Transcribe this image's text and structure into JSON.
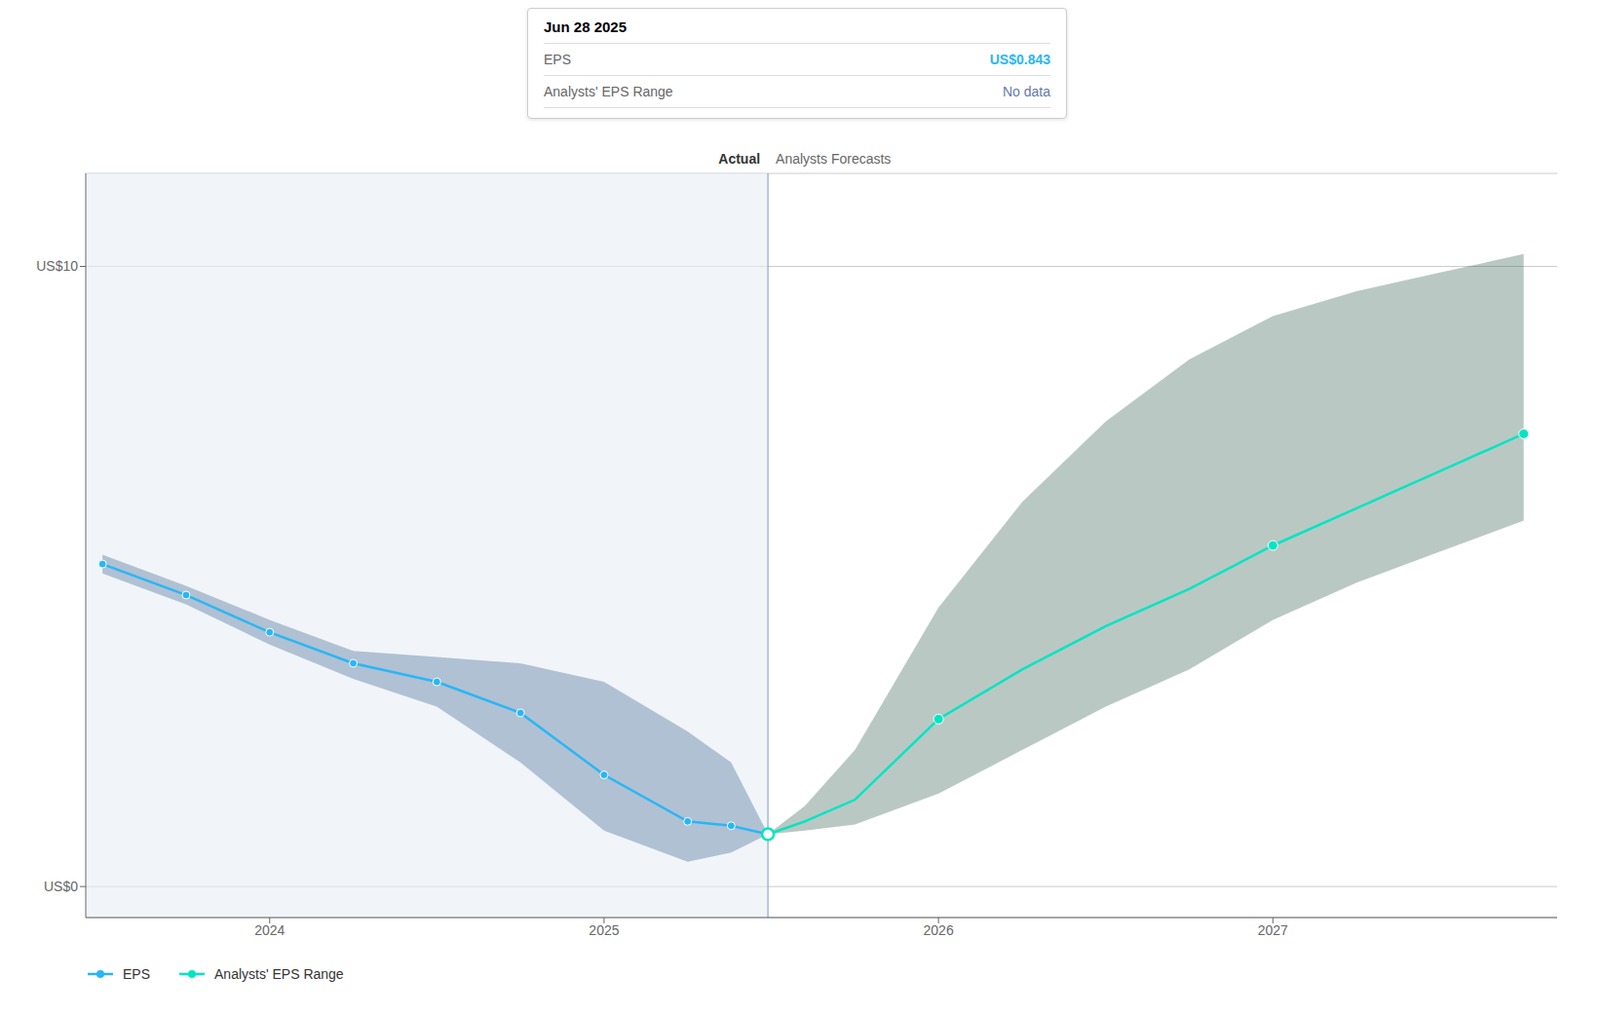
{
  "chart_data": {
    "type": "line",
    "xlim": [
      2023.45,
      2027.85
    ],
    "xticks": [
      2024,
      2025,
      2026,
      2027
    ],
    "ylim": [
      -0.5,
      11.5
    ],
    "yticks": [
      {
        "value": 0,
        "label": "US$0"
      },
      {
        "value": 10,
        "label": "US$10"
      }
    ],
    "grid": true,
    "legend": "lower left",
    "divider_x": 2025.49,
    "region_labels": [
      "Actual",
      "Analysts Forecasts"
    ],
    "series": [
      {
        "name": "EPS",
        "color": "#29b6f6",
        "x": [
          2023.5,
          2023.75,
          2024.0,
          2024.25,
          2024.5,
          2024.75,
          2025.0,
          2025.25,
          2025.38,
          2025.49
        ],
        "values": [
          5.2,
          4.7,
          4.1,
          3.6,
          3.3,
          2.8,
          1.8,
          1.05,
          0.98,
          0.843
        ],
        "band_lower": [
          5.05,
          4.55,
          3.9,
          3.35,
          2.9,
          2.0,
          0.9,
          0.4,
          0.55,
          0.843
        ],
        "band_upper": [
          5.35,
          4.85,
          4.3,
          3.8,
          3.7,
          3.6,
          3.3,
          2.5,
          2.0,
          0.843
        ],
        "band_color": "#1a4a7a",
        "marker_x": [
          2023.5,
          2023.75,
          2024.0,
          2024.25,
          2024.5,
          2024.75,
          2025.0,
          2025.25,
          2025.38
        ],
        "marker_values": [
          5.2,
          4.7,
          4.1,
          3.6,
          3.3,
          2.8,
          1.8,
          1.05,
          0.98
        ]
      },
      {
        "name": "Analysts' EPS Range",
        "color": "#00e5c3",
        "x": [
          2025.49,
          2025.6,
          2025.75,
          2026.0,
          2026.25,
          2026.5,
          2026.75,
          2027.0,
          2027.25,
          2027.5,
          2027.75
        ],
        "values": [
          0.843,
          1.05,
          1.4,
          2.7,
          3.5,
          4.2,
          4.8,
          5.5,
          6.1,
          6.7,
          7.3
        ],
        "band_lower": [
          0.843,
          0.9,
          1.0,
          1.5,
          2.2,
          2.9,
          3.5,
          4.3,
          4.9,
          5.4,
          5.9
        ],
        "band_upper": [
          0.843,
          1.3,
          2.2,
          4.5,
          6.2,
          7.5,
          8.5,
          9.2,
          9.6,
          9.9,
          10.2
        ],
        "band_color": "#1a4a3a",
        "marker_x": [
          2026.0,
          2027.0,
          2027.75
        ],
        "marker_values": [
          2.7,
          5.5,
          7.3
        ]
      }
    ],
    "transition_point": {
      "x": 2025.49,
      "value": 0.843
    },
    "tooltip": {
      "title": "Jun 28 2025",
      "rows": [
        {
          "label": "EPS",
          "value": "US$0.843",
          "color": "#29b6f6"
        },
        {
          "label": "Analysts' EPS Range",
          "value": "No data",
          "color": "#6677aa"
        }
      ]
    }
  }
}
